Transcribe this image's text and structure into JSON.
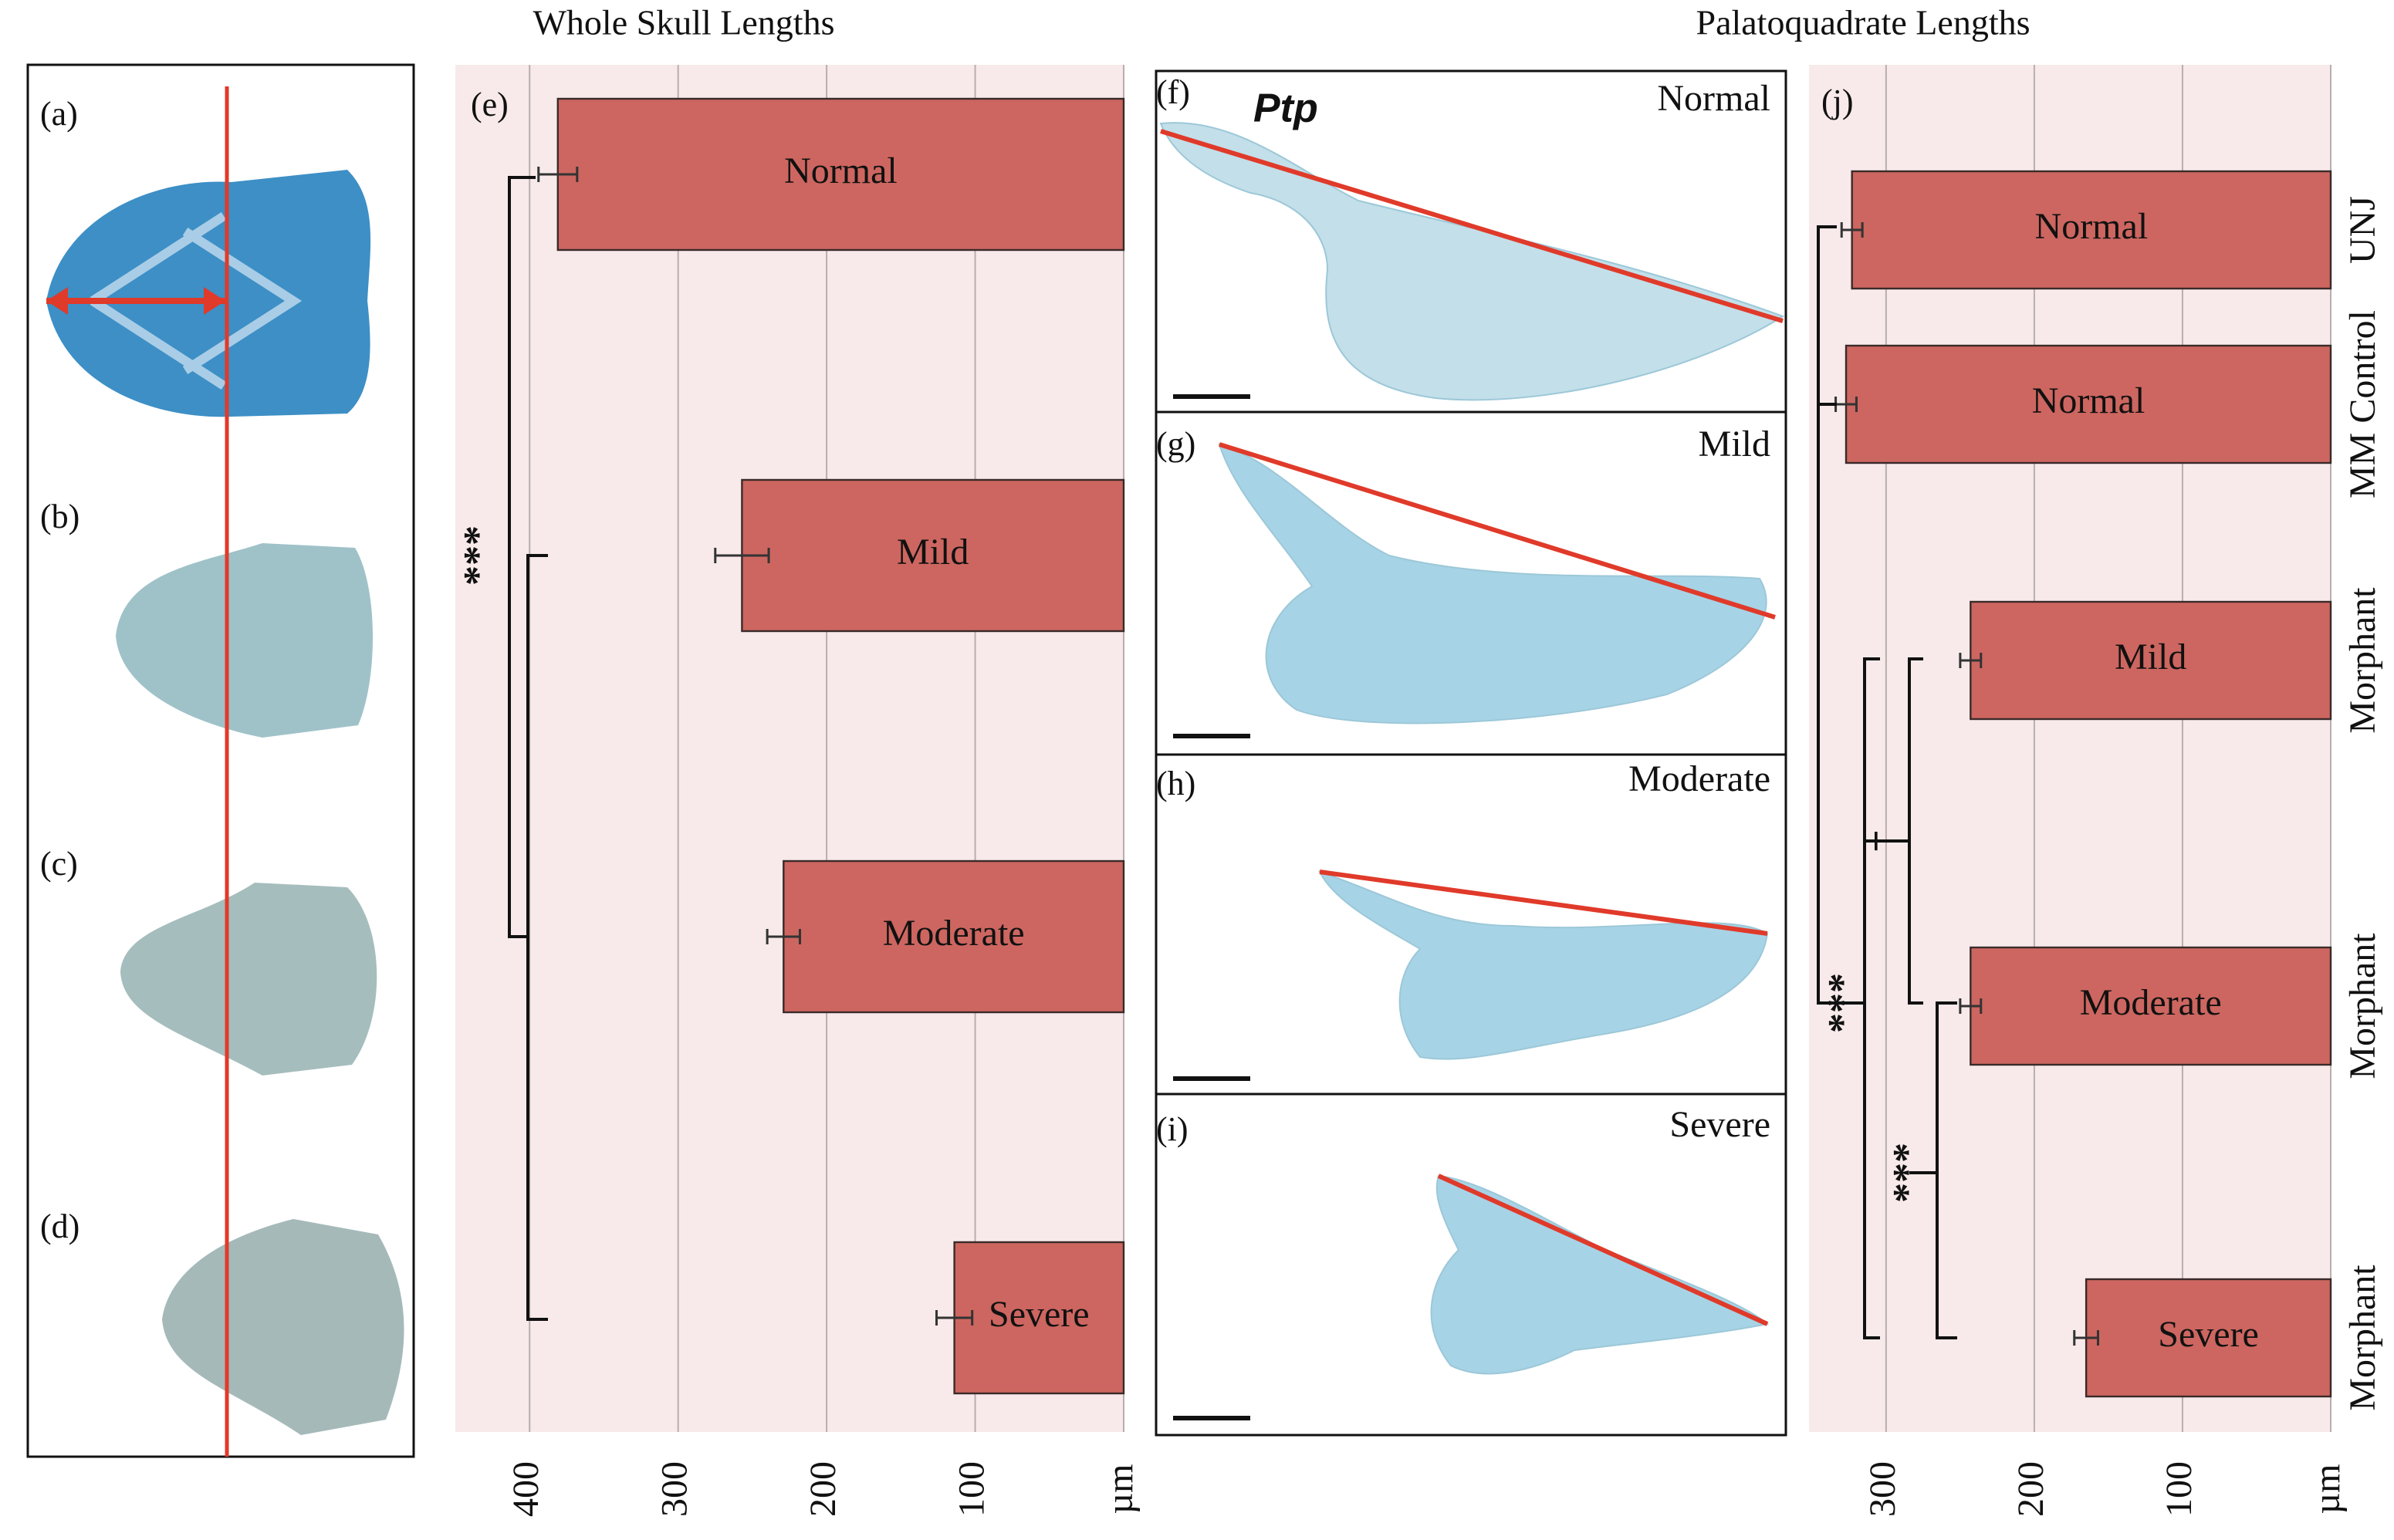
{
  "chart_data": [
    {
      "type": "bar",
      "orientation": "horizontal",
      "title": "Whole Skull Lengths",
      "panel_label": "(e)",
      "categories": [
        "Normal",
        "Mild",
        "Moderate",
        "Severe"
      ],
      "values": [
        381,
        257,
        229,
        114
      ],
      "errors": [
        13,
        18,
        11,
        12
      ],
      "color": "#cd6660",
      "xlim": [
        450,
        0
      ],
      "xticks": [
        400,
        300,
        200,
        100,
        {
          "value": 0,
          "label": "µm"
        }
      ],
      "grid": true,
      "annotations": [
        "***"
      ]
    },
    {
      "type": "bar",
      "orientation": "horizontal",
      "title": "Palatoquadrate Lengths",
      "panel_label": "(j)",
      "categories": [
        "Normal",
        "Normal",
        "Mild",
        "Moderate",
        "Severe"
      ],
      "groups": [
        "UNJ",
        "MM Control",
        "Morphant",
        "Morphant",
        "Morphant"
      ],
      "values": [
        323,
        327,
        243,
        243,
        165
      ],
      "errors": [
        7,
        7,
        7,
        7,
        8
      ],
      "color": "#cd6660",
      "xlim": [
        352,
        0
      ],
      "xticks": [
        300,
        200,
        100,
        {
          "value": 0,
          "label": "µm"
        }
      ],
      "grid": true,
      "annotations": [
        "+",
        "***",
        "***"
      ]
    }
  ],
  "skull_panels": {
    "labels": [
      "(a)",
      "(b)",
      "(c)",
      "(d)"
    ]
  },
  "cartilage_panels": {
    "labels": [
      "(f)",
      "(g)",
      "(h)",
      "(i)"
    ],
    "conditions": [
      "Normal",
      "Mild",
      "Moderate",
      "Severe"
    ],
    "structure_label": "Ptp"
  }
}
